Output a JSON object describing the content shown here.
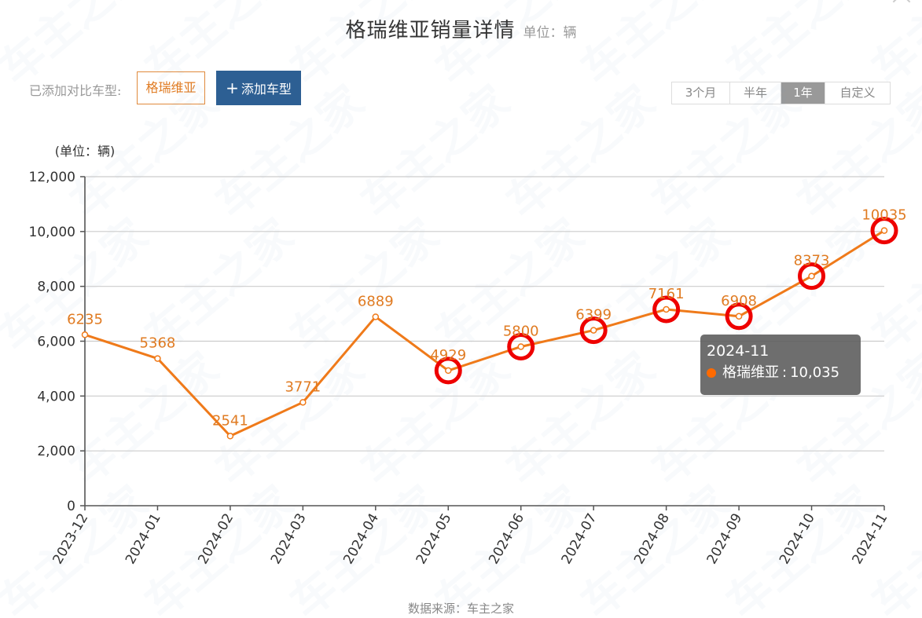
{
  "header": {
    "title": "格瑞维亚销量详情",
    "unit": "单位：辆"
  },
  "toolbar": {
    "compare_label": "已添加对比车型:",
    "selected_model": "格瑞维亚",
    "add_button_icon": "plus-icon",
    "add_button_label": "添加车型",
    "range_options": [
      {
        "label": "3个月",
        "active": false
      },
      {
        "label": "半年",
        "active": false
      },
      {
        "label": "1年",
        "active": true
      },
      {
        "label": "自定义",
        "active": false
      }
    ]
  },
  "tooltip": {
    "date": "2024-11",
    "series": "格瑞维亚",
    "value": "10,035",
    "marker_color": "#ff6a00"
  },
  "footer": {
    "source": "数据来源：车主之家"
  },
  "colors": {
    "line": "#ef7a1a",
    "label": "#e07b22",
    "highlight_circle": "#ee0000",
    "add_button": "#2d5f93",
    "tooltip_bg": "#5a5a5a"
  },
  "chart_data": {
    "type": "line",
    "title": "格瑞维亚销量详情",
    "subtitle": "单位：辆",
    "xlabel": "",
    "ylabel": "(单位：辆)",
    "ylim": [
      0,
      12000
    ],
    "yticks": [
      0,
      2000,
      4000,
      6000,
      8000,
      10000,
      12000
    ],
    "ytick_labels": [
      "0",
      "2,000",
      "4,000",
      "6,000",
      "8,000",
      "10,000",
      "12,000"
    ],
    "grid": true,
    "legend": null,
    "categories": [
      "2023-12",
      "2024-01",
      "2024-02",
      "2024-03",
      "2024-04",
      "2024-05",
      "2024-06",
      "2024-07",
      "2024-08",
      "2024-09",
      "2024-10",
      "2024-11"
    ],
    "series": [
      {
        "name": "格瑞维亚",
        "values": [
          6235,
          5368,
          2541,
          3771,
          6889,
          4929,
          5800,
          6399,
          7161,
          6908,
          8373,
          10035
        ]
      }
    ],
    "annotations": {
      "highlighted_points": [
        "2024-05",
        "2024-06",
        "2024-07",
        "2024-08",
        "2024-09",
        "2024-10",
        "2024-11"
      ],
      "tooltip_point": "2024-11"
    }
  }
}
